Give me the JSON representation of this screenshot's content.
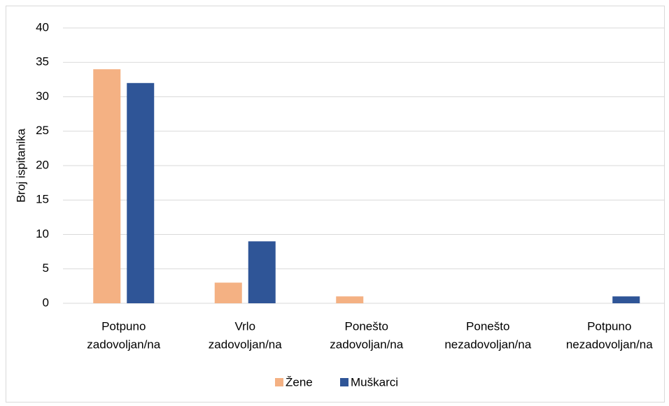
{
  "chart_data": {
    "type": "bar",
    "y_label": "Broj ispitanika",
    "categories": [
      [
        "Potpuno",
        "zadovoljan/na"
      ],
      [
        "Vrlo",
        "zadovoljan/na"
      ],
      [
        "Ponešto",
        "zadovoljan/na"
      ],
      [
        "Ponešto",
        "nezadovoljan/na"
      ],
      [
        "Potpuno",
        "nezadovoljan/na"
      ]
    ],
    "series": [
      {
        "name": "Žene",
        "color": "#f4b183",
        "values": [
          34,
          3,
          1,
          0,
          0
        ]
      },
      {
        "name": "Muškarci",
        "color": "#2f5597",
        "values": [
          32,
          9,
          0,
          0,
          1
        ]
      }
    ],
    "ylim": [
      0,
      40
    ],
    "yticks": [
      0,
      5,
      10,
      15,
      20,
      25,
      30,
      35,
      40
    ],
    "grid": true,
    "legend": "bottom"
  }
}
